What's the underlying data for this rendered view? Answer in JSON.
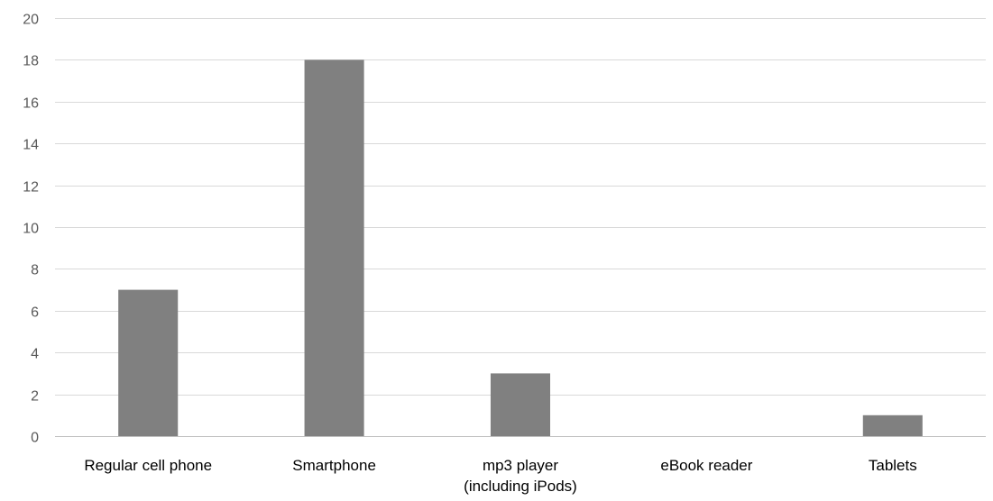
{
  "chart_data": {
    "type": "bar",
    "title": "",
    "xlabel": "",
    "ylabel": "",
    "categories": [
      [
        "Regular cell phone"
      ],
      [
        "Smartphone"
      ],
      [
        "mp3 player",
        "(including iPods)"
      ],
      [
        "eBook reader"
      ],
      [
        "Tablets"
      ]
    ],
    "values": [
      7,
      18,
      3,
      0,
      1
    ],
    "ylim": [
      0,
      20
    ],
    "yticks": [
      "0",
      "2",
      "4",
      "6",
      "8",
      "10",
      "12",
      "14",
      "16",
      "18",
      "20"
    ],
    "grid": true,
    "legend": "none",
    "bar_color": "#808080"
  }
}
